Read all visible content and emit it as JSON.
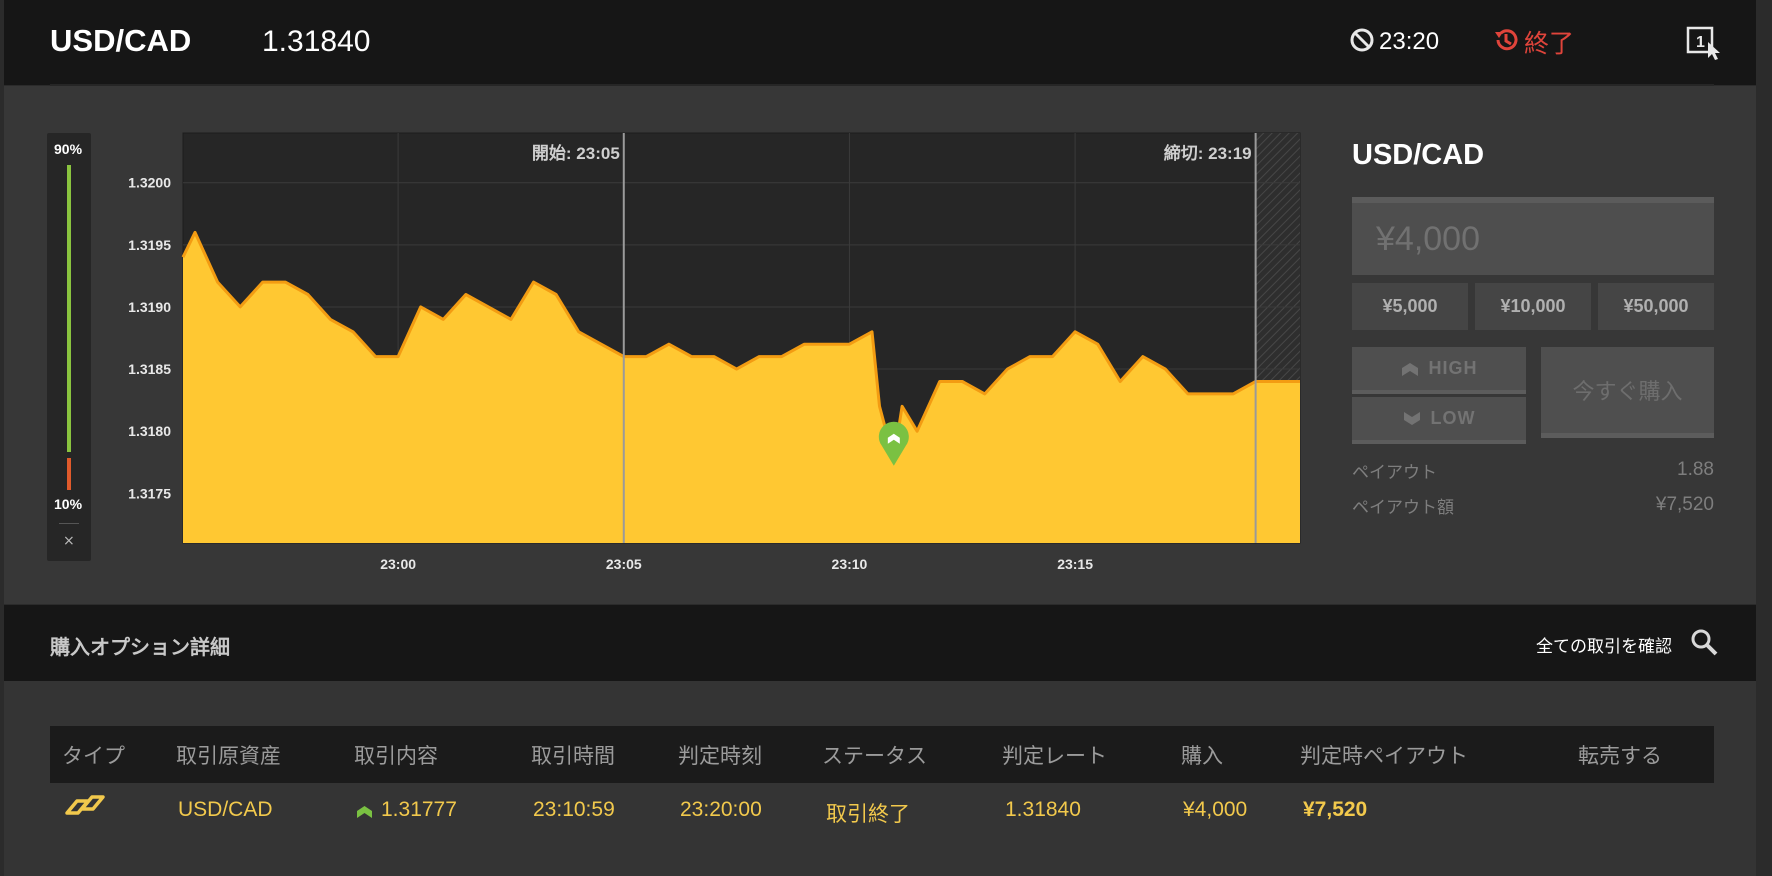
{
  "header": {
    "pair": "USD/CAD",
    "price": "1.31840",
    "expiry_time": "23:20",
    "status": "終了"
  },
  "gauge": {
    "high_pct_label": "90%",
    "low_pct_label": "10%",
    "high_pct": 90,
    "low_pct": 10,
    "close_symbol": "×"
  },
  "chart_data": {
    "type": "area",
    "y_ticks": [
      "1.3200",
      "1.3195",
      "1.3190",
      "1.3185",
      "1.3180",
      "1.3175"
    ],
    "ylim": [
      1.3171,
      1.3204
    ],
    "x_ticks": [
      "23:00",
      "23:05",
      "23:10",
      "23:15"
    ],
    "xlim": [
      "22:55:14",
      "23:19:59"
    ],
    "grid": true,
    "start_marker": {
      "label": "開始: 23:05",
      "time": "23:05"
    },
    "end_marker": {
      "label": "締切: 23:19",
      "time": "23:19"
    },
    "entry_point": {
      "time": "23:10:59",
      "value": 1.31777,
      "direction": "high"
    },
    "series": [
      {
        "x": [
          "22:55:14",
          "22:55:30",
          "22:56:00",
          "22:56:30",
          "22:57:00",
          "22:57:30",
          "22:58:00",
          "22:58:30",
          "22:59:00",
          "22:59:30",
          "23:00:00",
          "23:00:30",
          "23:01:00",
          "23:01:30",
          "23:02:00",
          "23:02:30",
          "23:03:00",
          "23:03:30",
          "23:04:00",
          "23:04:30",
          "23:05:00",
          "23:05:30",
          "23:06:00",
          "23:06:30",
          "23:07:00",
          "23:07:30",
          "23:08:00",
          "23:08:30",
          "23:09:00",
          "23:09:30",
          "23:10:00",
          "23:10:30",
          "23:10:40",
          "23:10:59",
          "23:11:10",
          "23:11:30",
          "23:12:00",
          "23:12:30",
          "23:13:00",
          "23:13:30",
          "23:14:00",
          "23:14:30",
          "23:15:00",
          "23:15:30",
          "23:16:00",
          "23:16:30",
          "23:17:00",
          "23:17:30",
          "23:18:00",
          "23:18:30",
          "23:19:00",
          "23:19:30",
          "23:19:59"
        ],
        "values": [
          1.3194,
          1.3196,
          1.3192,
          1.319,
          1.3192,
          1.3192,
          1.3191,
          1.3189,
          1.3188,
          1.3186,
          1.3186,
          1.319,
          1.3189,
          1.3191,
          1.319,
          1.3189,
          1.3192,
          1.3191,
          1.3188,
          1.3187,
          1.3186,
          1.3186,
          1.3187,
          1.3186,
          1.3186,
          1.3185,
          1.3186,
          1.3186,
          1.3187,
          1.3187,
          1.3187,
          1.3188,
          1.3182,
          1.31777,
          1.3182,
          1.318,
          1.3184,
          1.3184,
          1.3183,
          1.3185,
          1.3186,
          1.3186,
          1.3188,
          1.3187,
          1.3184,
          1.3186,
          1.3185,
          1.3183,
          1.3183,
          1.3183,
          1.3184,
          1.3184,
          1.3184
        ]
      }
    ]
  },
  "right_panel": {
    "title": "USD/CAD",
    "amount_placeholder": "¥4,000",
    "chips": [
      "¥5,000",
      "¥10,000",
      "¥50,000"
    ],
    "high_label": "HIGH",
    "low_label": "LOW",
    "buy_label": "今すぐ購入",
    "payout_label": "ペイアウト",
    "payout_value": "1.88",
    "payout_amount_label": "ペイアウト額",
    "payout_amount_value": "¥7,520"
  },
  "details": {
    "title": "購入オプション詳細",
    "view_all": "全ての取引を確認"
  },
  "table": {
    "headers": [
      "タイプ",
      "取引原資産",
      "取引内容",
      "取引時間",
      "判定時刻",
      "ステータス",
      "判定レート",
      "購入",
      "判定時ペイアウト",
      "転売する"
    ],
    "rows": [
      {
        "asset": "USD/CAD",
        "content": "1.31777",
        "trade_time": "23:10:59",
        "judge_time": "23:20:00",
        "status": "取引終了",
        "rate": "1.31840",
        "purchase": "¥4,000",
        "payout": "¥7,520",
        "resell": ""
      }
    ]
  },
  "colors": {
    "area_fill": "#ffc832",
    "area_line": "#f39c12",
    "accent": "#f2c94c",
    "gauge_high": "#8ac43f",
    "gauge_low": "#e05a2b",
    "alert": "#e0443b"
  }
}
